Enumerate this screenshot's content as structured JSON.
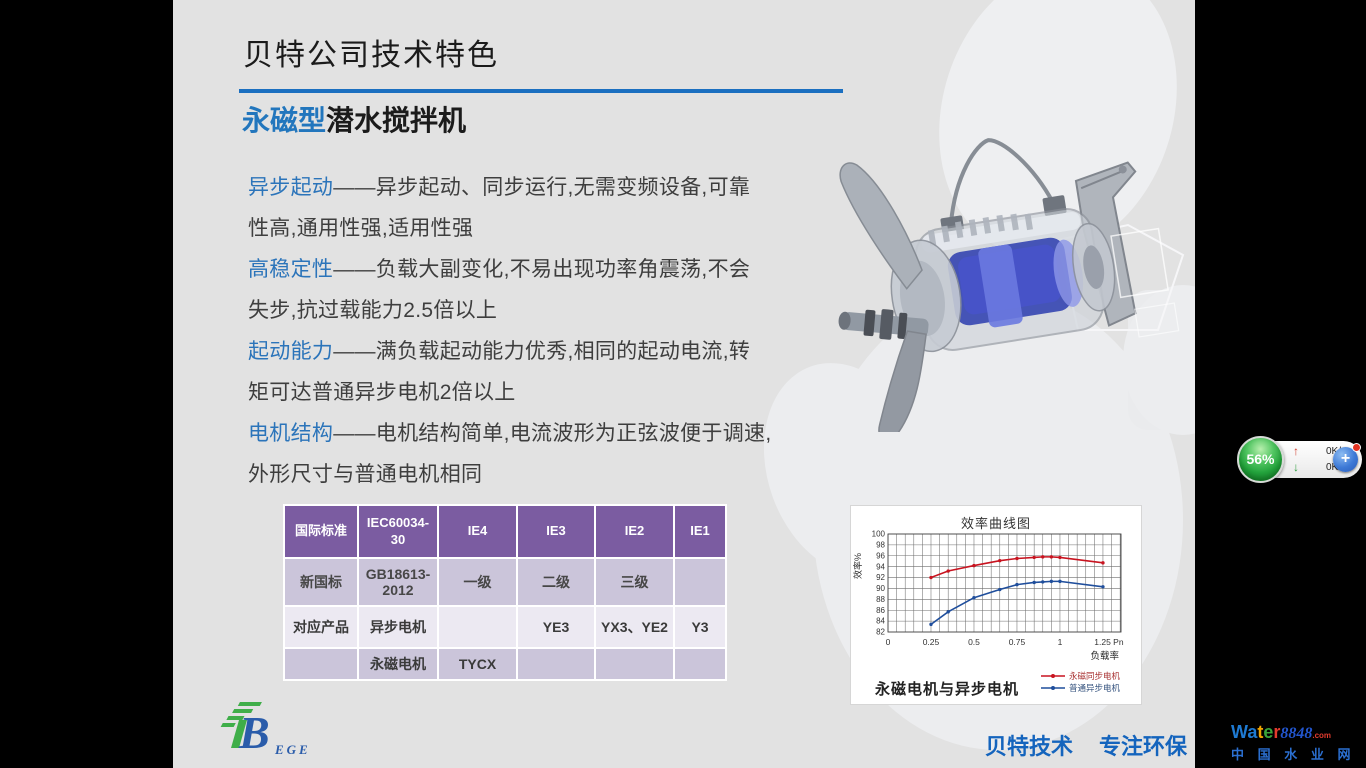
{
  "slide": {
    "title": "贝特公司技术特色",
    "subtitle_highlight": "永磁型",
    "subtitle_rest": "潜水搅拌机",
    "features": [
      {
        "keyword": "异步起动",
        "line1": "——异步起动、同步运行,无需变频设备,可靠",
        "line2": "性高,通用性强,适用性强"
      },
      {
        "keyword": "高稳定性",
        "line1": "——负载大副变化,不易出现功率角震荡,不会",
        "line2": "失步,抗过载能力2.5倍以上"
      },
      {
        "keyword": "起动能力",
        "line1": "——满负载起动能力优秀,相同的起动电流,转",
        "line2": "矩可达普通异步电机2倍以上"
      },
      {
        "keyword": "电机结构",
        "line1": "——电机结构简单,电流波形为正弦波便于调速,",
        "line2": "外形尺寸与普通电机相同"
      }
    ],
    "slogan_left": "贝特技术",
    "slogan_right": "专注环保",
    "accent_blue": "#1b6fc0",
    "keyword_blue": "#2b74ba"
  },
  "table": {
    "header": [
      "国际标准",
      "IEC60034-30",
      "IE4",
      "IE3",
      "IE2",
      "IE1"
    ],
    "rows": [
      [
        "新国标",
        "GB18613-2012",
        "一级",
        "二级",
        "三级",
        ""
      ],
      [
        "对应产品",
        "异步电机",
        "",
        "YE3",
        "YX3、YE2",
        "Y3"
      ],
      [
        "",
        "永磁电机",
        "TYCX",
        "",
        "",
        ""
      ]
    ],
    "header_color": "#7b5ca1",
    "row_dark": "#cbc5da",
    "row_light": "#ece9f2"
  },
  "chart_data": {
    "type": "line",
    "title": "效率曲线图",
    "caption": "永磁电机与异步电机",
    "xlabel": "负载率",
    "ylabel": "效率%",
    "xlim": [
      0,
      1.355
    ],
    "ylim": [
      82,
      100
    ],
    "y_tick_step": 2,
    "x_minor_step": 0.05,
    "x_ticks": [
      0,
      0.25,
      0.5,
      0.75,
      1,
      1.25
    ],
    "x_tick_labels": [
      "0",
      "0.25",
      "0.5",
      "0.75",
      "1",
      "1.25 Pn"
    ],
    "grid": true,
    "legend_position": "bottom-right",
    "series": [
      {
        "name": "永磁同步电机",
        "color": "#c81420",
        "x": [
          0.25,
          0.35,
          0.5,
          0.65,
          0.75,
          0.85,
          0.9,
          0.95,
          1.0,
          1.25
        ],
        "y": [
          92,
          93.2,
          94.2,
          95.1,
          95.5,
          95.7,
          95.8,
          95.8,
          95.7,
          94.7
        ]
      },
      {
        "name": "普通异步电机",
        "color": "#1f4e9c",
        "x": [
          0.25,
          0.35,
          0.5,
          0.65,
          0.75,
          0.85,
          0.9,
          0.95,
          1.0,
          1.25
        ],
        "y": [
          83.4,
          85.7,
          88.3,
          89.8,
          90.7,
          91.1,
          91.2,
          91.3,
          91.3,
          90.3
        ]
      }
    ]
  },
  "bge_logo": {
    "b": "B",
    "rest": "EGE"
  },
  "widget": {
    "percent": "56%",
    "up_arrow": "↑",
    "down_arrow": "↓",
    "up_speed": "0K/s",
    "down_speed": "0K/s",
    "plus": "+"
  },
  "watermark": {
    "letters": [
      {
        "ch": "W",
        "color": "#1e7ad2"
      },
      {
        "ch": "a",
        "color": "#1e7ad2"
      },
      {
        "ch": "t",
        "color": "#f0a400"
      },
      {
        "ch": "e",
        "color": "#3aa53a"
      },
      {
        "ch": "r",
        "color": "#e23b2e"
      }
    ],
    "number": "8848",
    "dotcom": ".com",
    "line2": "中 国 水 业 网"
  }
}
